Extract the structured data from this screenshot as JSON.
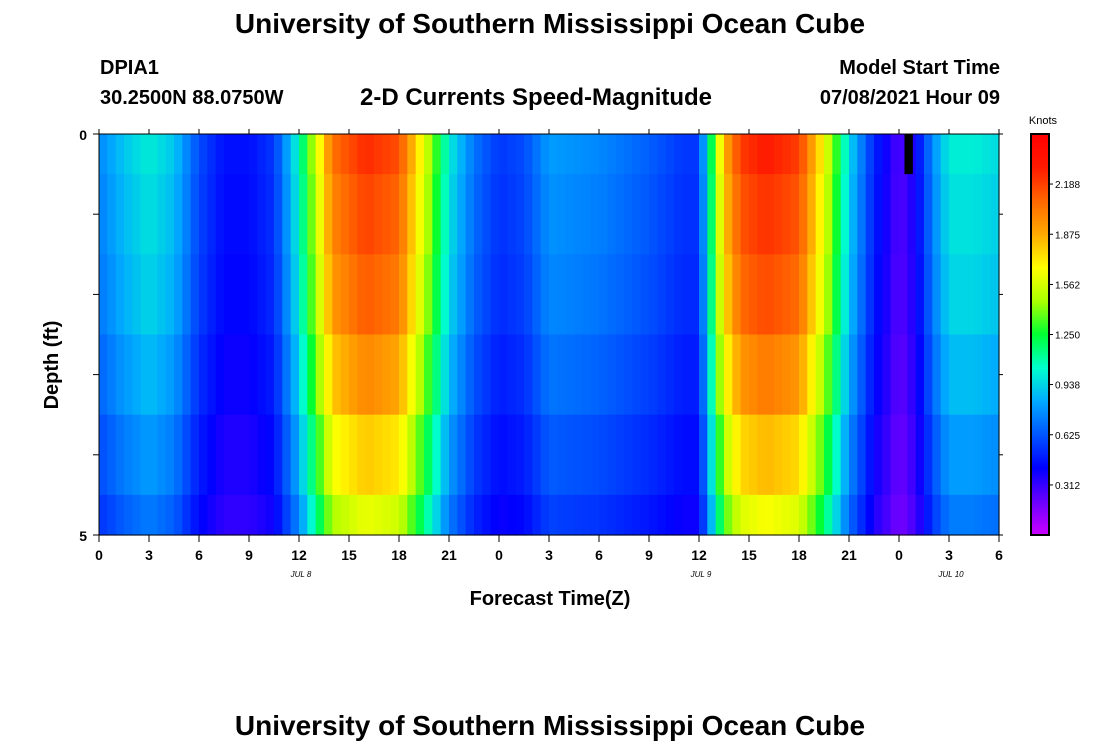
{
  "header": {
    "title": "University of Southern Mississippi Ocean Cube",
    "station_id": "DPIA1",
    "station_coords": "30.2500N  88.0750W",
    "subtitle": "2-D Currents Speed-Magnitude",
    "model_start_label": "Model Start Time",
    "model_start_value": "07/08/2021 Hour 09"
  },
  "footer": {
    "title": "University of Southern Mississippi Ocean Cube"
  },
  "colors": {
    "colormap": [
      "#cc00ff",
      "#6a00ff",
      "#0000ff",
      "#0055ff",
      "#00aaff",
      "#00ffcc",
      "#00ff33",
      "#aaff00",
      "#ffff00",
      "#ffaa00",
      "#ff6600",
      "#ff1a00",
      "#ff0000"
    ],
    "missing": "#000000"
  },
  "chart_data": {
    "type": "heatmap",
    "title": "2-D Currents Speed-Magnitude",
    "xlabel": "Forecast Time(Z)",
    "ylabel": "Depth (ft)",
    "x_ticks": [
      "0",
      "3",
      "6",
      "9",
      "12",
      "15",
      "18",
      "21",
      "0",
      "3",
      "6",
      "9",
      "12",
      "15",
      "18",
      "21",
      "0",
      "3",
      "6"
    ],
    "x_range_hours": [
      0,
      54
    ],
    "date_labels": [
      {
        "label": "JUL 8",
        "hour": 12
      },
      {
        "label": "JUL 9",
        "hour": 36
      },
      {
        "label": "JUL 10",
        "hour": 51
      }
    ],
    "y_ticks": [
      "0",
      "5"
    ],
    "y_range_ft": [
      0,
      5
    ],
    "depth_bins_ft": [
      0,
      0.5,
      1.5,
      2.5,
      3.5,
      4.5,
      5
    ],
    "colorbar": {
      "label": "Knots",
      "min": 0.0,
      "max": 2.5,
      "tick_labels": [
        "0.312",
        "0.625",
        "0.938",
        "1.250",
        "1.562",
        "1.875",
        "2.188"
      ],
      "tick_values": [
        0.312,
        0.625,
        0.938,
        1.25,
        1.562,
        1.875,
        2.188
      ]
    },
    "profile_hours": [
      0,
      1.5,
      3,
      4.5,
      6,
      7.5,
      9,
      10.5,
      12,
      13,
      14,
      16,
      18,
      19.5,
      21,
      22.5,
      24,
      25.5,
      27,
      30,
      33,
      35,
      36,
      36.5,
      37.5,
      38.5,
      40,
      42,
      43.5,
      45,
      46.5,
      47.5,
      48,
      49,
      50,
      51,
      52.5,
      54
    ],
    "profile_speeds_knots": [
      0.75,
      0.9,
      1.0,
      0.9,
      0.6,
      0.45,
      0.45,
      0.55,
      1.05,
      1.55,
      2.05,
      2.25,
      2.15,
      1.6,
      1.0,
      0.7,
      0.55,
      0.6,
      0.8,
      0.75,
      0.65,
      0.55,
      0.55,
      1.0,
      1.85,
      2.2,
      2.3,
      2.2,
      1.65,
      0.95,
      0.5,
      0.35,
      0.25,
      0.4,
      0.75,
      1.0,
      1.0,
      0.95
    ],
    "depth_factors": [
      1.0,
      0.97,
      0.94,
      0.88,
      0.8,
      0.72
    ],
    "missing_cells": [
      {
        "hour_start": 48.33,
        "hour_end": 48.83,
        "depth_top_ft": 0,
        "depth_bottom_ft": 0.5
      }
    ]
  }
}
